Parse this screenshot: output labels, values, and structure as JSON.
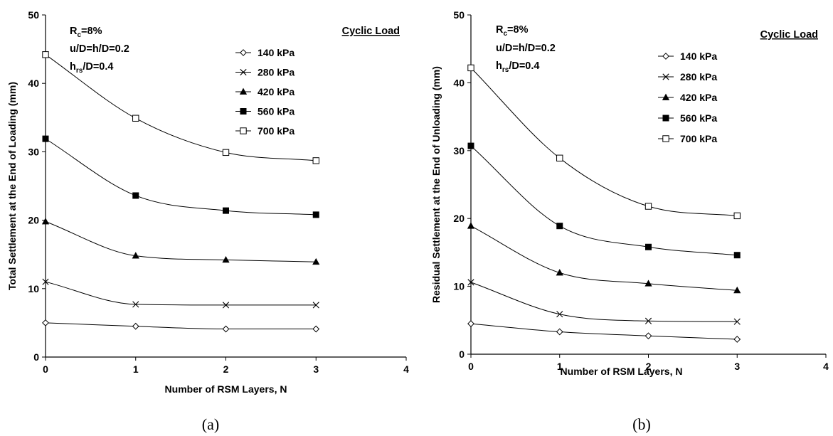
{
  "chart_data": [
    {
      "type": "line",
      "panel_label": "(a)",
      "xlabel": "Number of RSM Layers, N",
      "ylabel": "Total Settlement at the End of Loading (mm)",
      "xlim": [
        0,
        4
      ],
      "ylim": [
        0,
        50
      ],
      "x_ticks": [
        "0",
        "1",
        "2",
        "3",
        "4"
      ],
      "y_ticks": [
        "0",
        "10",
        "20",
        "30",
        "40",
        "50"
      ],
      "grid": false,
      "annotations": [
        {
          "base": "R",
          "sub": "c",
          "rest": "=8%"
        },
        {
          "base": "u/D=h/D=0.2",
          "sub": "",
          "rest": ""
        },
        {
          "base": "h",
          "sub": "rs",
          "rest": "/D=0.4"
        }
      ],
      "legend_title": "Cyclic Load",
      "legend_position": "top-right",
      "x": [
        0,
        1,
        2,
        3
      ],
      "series": [
        {
          "name": "140 kPa",
          "marker": "diamond-open",
          "values": [
            5.0,
            4.5,
            4.1,
            4.1
          ]
        },
        {
          "name": "280 kPa",
          "marker": "x",
          "values": [
            11.0,
            7.7,
            7.6,
            7.6
          ]
        },
        {
          "name": "420 kPa",
          "marker": "triangle-filled",
          "values": [
            19.8,
            14.8,
            14.2,
            13.9
          ]
        },
        {
          "name": "560 kPa",
          "marker": "square-filled",
          "values": [
            31.9,
            23.6,
            21.4,
            20.8
          ]
        },
        {
          "name": "700 kPa",
          "marker": "square-open",
          "values": [
            44.2,
            34.9,
            29.9,
            28.7
          ]
        }
      ]
    },
    {
      "type": "line",
      "panel_label": "(b)",
      "xlabel": "Number of RSM Layers, N",
      "ylabel": "Residual Settlement at the End of Unloading (mm)",
      "xlim": [
        0,
        4
      ],
      "ylim": [
        0,
        50
      ],
      "x_ticks": [
        "0",
        "1",
        "2",
        "3",
        "4"
      ],
      "y_ticks": [
        "0",
        "10",
        "20",
        "30",
        "40",
        "50"
      ],
      "grid": false,
      "annotations": [
        {
          "base": "R",
          "sub": "c",
          "rest": "=8%"
        },
        {
          "base": "u/D=h/D=0.2",
          "sub": "",
          "rest": ""
        },
        {
          "base": "h",
          "sub": "rs",
          "rest": "/D=0.4"
        }
      ],
      "legend_title": "Cyclic Load",
      "legend_position": "top-right",
      "x": [
        0,
        1,
        2,
        3
      ],
      "series": [
        {
          "name": "140 kPa",
          "marker": "diamond-open",
          "values": [
            4.5,
            3.3,
            2.7,
            2.2
          ]
        },
        {
          "name": "280 kPa",
          "marker": "x",
          "values": [
            10.6,
            5.9,
            4.9,
            4.8
          ]
        },
        {
          "name": "420 kPa",
          "marker": "triangle-filled",
          "values": [
            18.9,
            12.0,
            10.4,
            9.4
          ]
        },
        {
          "name": "560 kPa",
          "marker": "square-filled",
          "values": [
            30.7,
            18.9,
            15.8,
            14.6
          ]
        },
        {
          "name": "700 kPa",
          "marker": "square-open",
          "values": [
            42.2,
            28.9,
            21.8,
            20.4
          ]
        }
      ]
    }
  ]
}
